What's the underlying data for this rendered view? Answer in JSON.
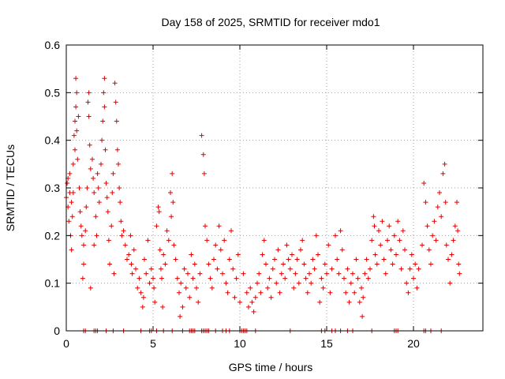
{
  "chart_data": {
    "type": "scatter",
    "title": "Day 158 of 2025, SRMTID for receiver mdo1",
    "xlabel": "GPS time / hours",
    "ylabel": "SRMTID / TECUs",
    "xlim": [
      0,
      24
    ],
    "ylim": [
      0,
      0.6
    ],
    "xticks": [
      0,
      5,
      10,
      15,
      20
    ],
    "xtick_labels": [
      "0",
      "5",
      "10",
      "15",
      "20"
    ],
    "yticks": [
      0,
      0.1,
      0.2,
      0.3,
      0.4,
      0.5,
      0.6
    ],
    "ytick_labels": [
      "0",
      "0.1",
      "0.2",
      "0.3",
      "0.4",
      "0.5",
      "0.6"
    ],
    "grid": true,
    "marker": "+",
    "color": "#e00000",
    "series": [
      {
        "name": "SRMTID",
        "points": [
          [
            0.0,
            0.28
          ],
          [
            0.05,
            0.31
          ],
          [
            0.1,
            0.32
          ],
          [
            0.1,
            0.26
          ],
          [
            0.15,
            0.23
          ],
          [
            0.2,
            0.33
          ],
          [
            0.2,
            0.29
          ],
          [
            0.25,
            0.2
          ],
          [
            0.3,
            0.17
          ],
          [
            0.3,
            0.27
          ],
          [
            0.35,
            0.24
          ],
          [
            0.4,
            0.29
          ],
          [
            0.4,
            0.35
          ],
          [
            0.45,
            0.41
          ],
          [
            0.5,
            0.38
          ],
          [
            0.5,
            0.44
          ],
          [
            0.55,
            0.53
          ],
          [
            0.55,
            0.47
          ],
          [
            0.6,
            0.5
          ],
          [
            0.6,
            0.42
          ],
          [
            0.65,
            0.36
          ],
          [
            0.7,
            0.45
          ],
          [
            0.75,
            0.3
          ],
          [
            0.8,
            0.25
          ],
          [
            0.85,
            0.22
          ],
          [
            0.9,
            0.2
          ],
          [
            0.95,
            0.11
          ],
          [
            1.0,
            0.18
          ],
          [
            1.0,
            0.14
          ],
          [
            1.1,
            0.21
          ],
          [
            1.15,
            0.26
          ],
          [
            1.2,
            0.3
          ],
          [
            1.25,
            0.48
          ],
          [
            1.3,
            0.5
          ],
          [
            1.3,
            0.45
          ],
          [
            1.35,
            0.39
          ],
          [
            1.4,
            0.34
          ],
          [
            1.4,
            0.09
          ],
          [
            1.5,
            0.36
          ],
          [
            1.55,
            0.32
          ],
          [
            1.6,
            0.29
          ],
          [
            1.6,
            0.18
          ],
          [
            1.7,
            0.24
          ],
          [
            1.75,
            0.2
          ],
          [
            1.8,
            0.33
          ],
          [
            1.85,
            0.3
          ],
          [
            1.9,
            0.27
          ],
          [
            2.0,
            0.35
          ],
          [
            2.05,
            0.4
          ],
          [
            2.1,
            0.44
          ],
          [
            2.15,
            0.5
          ],
          [
            2.2,
            0.53
          ],
          [
            2.2,
            0.47
          ],
          [
            2.25,
            0.38
          ],
          [
            2.3,
            0.31
          ],
          [
            2.35,
            0.28
          ],
          [
            2.4,
            0.25
          ],
          [
            2.45,
            0.19
          ],
          [
            2.5,
            0.14
          ],
          [
            2.6,
            0.22
          ],
          [
            2.65,
            0.29
          ],
          [
            2.7,
            0.33
          ],
          [
            2.75,
            0.12
          ],
          [
            2.8,
            0.52
          ],
          [
            2.85,
            0.48
          ],
          [
            2.9,
            0.44
          ],
          [
            2.95,
            0.38
          ],
          [
            3.0,
            0.35
          ],
          [
            3.05,
            0.3
          ],
          [
            3.1,
            0.27
          ],
          [
            3.15,
            0.23
          ],
          [
            3.2,
            0.2
          ],
          [
            3.3,
            0.21
          ],
          [
            3.4,
            0.18
          ],
          [
            3.5,
            0.15
          ],
          [
            3.6,
            0.16
          ],
          [
            3.7,
            0.2
          ],
          [
            3.75,
            0.14
          ],
          [
            3.8,
            0.12
          ],
          [
            3.9,
            0.17
          ],
          [
            4.0,
            0.13
          ],
          [
            4.1,
            0.09
          ],
          [
            4.2,
            0.11
          ],
          [
            4.3,
            0.08
          ],
          [
            4.4,
            0.05
          ],
          [
            4.45,
            0.07
          ],
          [
            4.5,
            0.15
          ],
          [
            4.6,
            0.12
          ],
          [
            4.7,
            0.19
          ],
          [
            4.8,
            0.1
          ],
          [
            4.9,
            0.13
          ],
          [
            5.0,
            0.11
          ],
          [
            5.05,
            0.09
          ],
          [
            5.1,
            0.06
          ],
          [
            5.2,
            0.22
          ],
          [
            5.3,
            0.26
          ],
          [
            5.35,
            0.25
          ],
          [
            5.4,
            0.17
          ],
          [
            5.45,
            0.13
          ],
          [
            5.5,
            0.11
          ],
          [
            5.55,
            0.05
          ],
          [
            5.6,
            0.16
          ],
          [
            5.7,
            0.14
          ],
          [
            5.8,
            0.21
          ],
          [
            5.9,
            0.19
          ],
          [
            6.0,
            0.29
          ],
          [
            6.05,
            0.24
          ],
          [
            6.1,
            0.33
          ],
          [
            6.15,
            0.27
          ],
          [
            6.2,
            0.18
          ],
          [
            6.3,
            0.15
          ],
          [
            6.4,
            0.11
          ],
          [
            6.5,
            0.08
          ],
          [
            6.55,
            0.03
          ],
          [
            6.6,
            0.1
          ],
          [
            6.7,
            0.05
          ],
          [
            6.8,
            0.13
          ],
          [
            6.9,
            0.09
          ],
          [
            7.0,
            0.12
          ],
          [
            7.1,
            0.07
          ],
          [
            7.2,
            0.16
          ],
          [
            7.3,
            0.11
          ],
          [
            7.4,
            0.14
          ],
          [
            7.5,
            0.09
          ],
          [
            7.6,
            0.06
          ],
          [
            7.7,
            0.12
          ],
          [
            7.8,
            0.41
          ],
          [
            7.9,
            0.37
          ],
          [
            7.95,
            0.33
          ],
          [
            8.0,
            0.22
          ],
          [
            8.1,
            0.19
          ],
          [
            8.2,
            0.14
          ],
          [
            8.3,
            0.11
          ],
          [
            8.4,
            0.09
          ],
          [
            8.5,
            0.15
          ],
          [
            8.6,
            0.18
          ],
          [
            8.7,
            0.13
          ],
          [
            8.8,
            0.22
          ],
          [
            8.9,
            0.17
          ],
          [
            9.0,
            0.12
          ],
          [
            9.1,
            0.19
          ],
          [
            9.2,
            0.1
          ],
          [
            9.3,
            0.08
          ],
          [
            9.4,
            0.15
          ],
          [
            9.5,
            0.21
          ],
          [
            9.6,
            0.13
          ],
          [
            9.7,
            0.07
          ],
          [
            9.8,
            0.11
          ],
          [
            9.9,
            0.16
          ],
          [
            10.0,
            0.06
          ],
          [
            10.2,
            0.12
          ],
          [
            10.4,
            0.08
          ],
          [
            10.5,
            0.05
          ],
          [
            10.6,
            0.09
          ],
          [
            10.7,
            0.06
          ],
          [
            10.8,
            0.04
          ],
          [
            10.9,
            0.07
          ],
          [
            11.0,
            0.1
          ],
          [
            11.1,
            0.12
          ],
          [
            11.2,
            0.08
          ],
          [
            11.3,
            0.16
          ],
          [
            11.4,
            0.19
          ],
          [
            11.5,
            0.14
          ],
          [
            11.6,
            0.09
          ],
          [
            11.7,
            0.11
          ],
          [
            11.8,
            0.07
          ],
          [
            11.9,
            0.13
          ],
          [
            12.0,
            0.15
          ],
          [
            12.1,
            0.1
          ],
          [
            12.2,
            0.17
          ],
          [
            12.3,
            0.08
          ],
          [
            12.4,
            0.12
          ],
          [
            12.5,
            0.14
          ],
          [
            12.6,
            0.11
          ],
          [
            12.7,
            0.18
          ],
          [
            12.8,
            0.15
          ],
          [
            12.9,
            0.13
          ],
          [
            13.0,
            0.16
          ],
          [
            13.1,
            0.09
          ],
          [
            13.2,
            0.12
          ],
          [
            13.3,
            0.15
          ],
          [
            13.4,
            0.1
          ],
          [
            13.5,
            0.17
          ],
          [
            13.6,
            0.19
          ],
          [
            13.7,
            0.14
          ],
          [
            13.8,
            0.11
          ],
          [
            13.9,
            0.08
          ],
          [
            14.0,
            0.12
          ],
          [
            14.1,
            0.1
          ],
          [
            14.2,
            0.15
          ],
          [
            14.3,
            0.13
          ],
          [
            14.4,
            0.2
          ],
          [
            14.5,
            0.16
          ],
          [
            14.6,
            0.06
          ],
          [
            14.7,
            0.11
          ],
          [
            14.8,
            0.09
          ],
          [
            14.9,
            0.14
          ],
          [
            15.0,
            0.12
          ],
          [
            15.1,
            0.18
          ],
          [
            15.2,
            0.08
          ],
          [
            15.3,
            0.13
          ],
          [
            15.5,
            0.2
          ],
          [
            15.6,
            0.15
          ],
          [
            15.7,
            0.12
          ],
          [
            15.8,
            0.21
          ],
          [
            15.9,
            0.17
          ],
          [
            16.0,
            0.11
          ],
          [
            16.1,
            0.08
          ],
          [
            16.2,
            0.13
          ],
          [
            16.3,
            0.06
          ],
          [
            16.4,
            0.1
          ],
          [
            16.5,
            0.12
          ],
          [
            16.6,
            0.08
          ],
          [
            16.7,
            0.15
          ],
          [
            16.8,
            0.11
          ],
          [
            16.9,
            0.06
          ],
          [
            17.0,
            0.09
          ],
          [
            17.05,
            0.03
          ],
          [
            17.1,
            0.07
          ],
          [
            17.2,
            0.12
          ],
          [
            17.3,
            0.15
          ],
          [
            17.4,
            0.11
          ],
          [
            17.5,
            0.13
          ],
          [
            17.6,
            0.19
          ],
          [
            17.7,
            0.24
          ],
          [
            17.75,
            0.22
          ],
          [
            17.8,
            0.16
          ],
          [
            17.9,
            0.14
          ],
          [
            18.0,
            0.21
          ],
          [
            18.1,
            0.18
          ],
          [
            18.2,
            0.23
          ],
          [
            18.3,
            0.15
          ],
          [
            18.4,
            0.12
          ],
          [
            18.5,
            0.19
          ],
          [
            18.6,
            0.22
          ],
          [
            18.7,
            0.17
          ],
          [
            18.8,
            0.14
          ],
          [
            18.9,
            0.2
          ],
          [
            19.0,
            0.16
          ],
          [
            19.1,
            0.23
          ],
          [
            19.2,
            0.19
          ],
          [
            19.3,
            0.13
          ],
          [
            19.4,
            0.21
          ],
          [
            19.5,
            0.17
          ],
          [
            19.6,
            0.1
          ],
          [
            19.7,
            0.08
          ],
          [
            19.8,
            0.13
          ],
          [
            19.9,
            0.16
          ],
          [
            20.0,
            0.11
          ],
          [
            20.1,
            0.14
          ],
          [
            20.2,
            0.09
          ],
          [
            20.3,
            0.13
          ],
          [
            20.5,
            0.18
          ],
          [
            20.6,
            0.31
          ],
          [
            20.7,
            0.27
          ],
          [
            20.8,
            0.22
          ],
          [
            20.9,
            0.17
          ],
          [
            21.0,
            0.14
          ],
          [
            21.1,
            0.2
          ],
          [
            21.2,
            0.23
          ],
          [
            21.3,
            0.19
          ],
          [
            21.4,
            0.26
          ],
          [
            21.5,
            0.29
          ],
          [
            21.6,
            0.24
          ],
          [
            21.7,
            0.33
          ],
          [
            21.8,
            0.35
          ],
          [
            21.85,
            0.27
          ],
          [
            21.9,
            0.18
          ],
          [
            22.0,
            0.15
          ],
          [
            22.1,
            0.1
          ],
          [
            22.2,
            0.16
          ],
          [
            22.3,
            0.19
          ],
          [
            22.4,
            0.22
          ],
          [
            22.5,
            0.27
          ],
          [
            22.55,
            0.21
          ],
          [
            22.6,
            0.14
          ],
          [
            22.65,
            0.12
          ]
        ]
      }
    ],
    "zero_rug_x": [
      1.0,
      1.1,
      1.6,
      1.7,
      1.8,
      2.3,
      2.7,
      3.3,
      4.3,
      4.8,
      4.9,
      5.2,
      5.6,
      6.1,
      6.7,
      7.1,
      7.2,
      7.3,
      7.4,
      7.8,
      7.9,
      8.0,
      8.1,
      8.2,
      8.6,
      9.0,
      9.2,
      9.4,
      10.0,
      10.1,
      10.2,
      10.3,
      10.4,
      10.9,
      12.9,
      14.7,
      14.9,
      15.3,
      15.5,
      15.8,
      16.2,
      16.5,
      17.6,
      18.9,
      19.0,
      19.1,
      20.6,
      20.7,
      21.0,
      21.6
    ]
  }
}
